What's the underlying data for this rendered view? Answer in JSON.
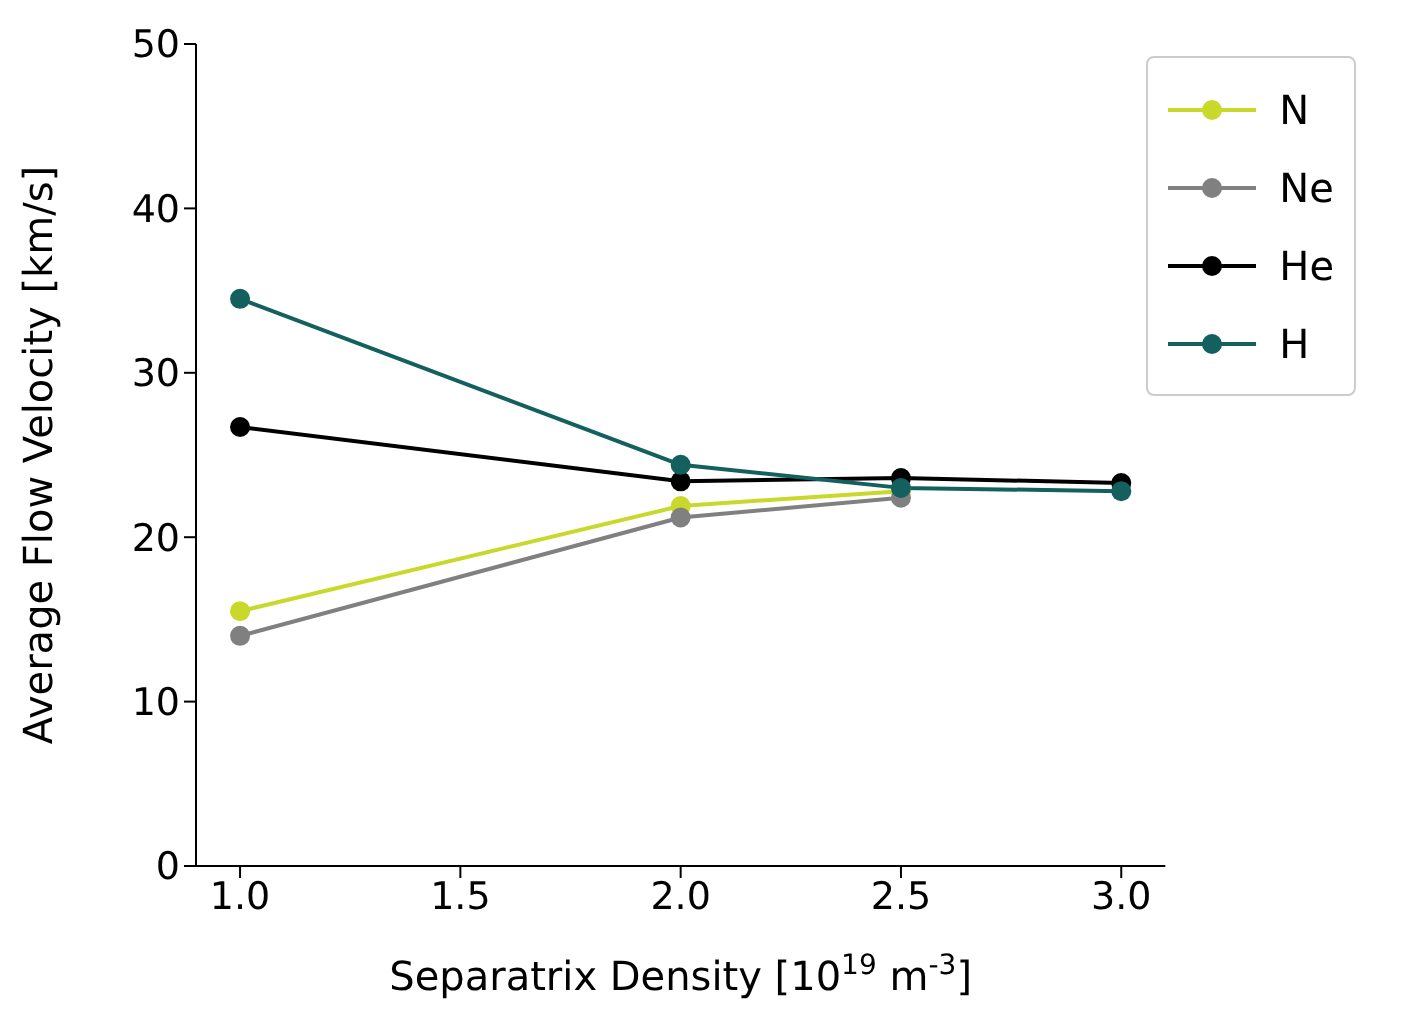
{
  "chart_data": {
    "type": "line",
    "xlabel": "Separatrix Density [10$^{19}$ m$^{-3}$]",
    "ylabel": "Average Flow Velocity [km/s]",
    "x": [
      1.0,
      2.0,
      2.5,
      3.0
    ],
    "series": [
      {
        "name": "N",
        "color": "#c8d92b",
        "values": [
          15.5,
          21.9,
          22.8,
          null
        ]
      },
      {
        "name": "Ne",
        "color": "#808080",
        "values": [
          14.0,
          21.2,
          22.4,
          null
        ]
      },
      {
        "name": "He",
        "color": "#000000",
        "values": [
          26.7,
          23.4,
          23.6,
          23.3
        ]
      },
      {
        "name": "H",
        "color": "#13605f",
        "values": [
          34.5,
          24.4,
          23.0,
          22.8
        ]
      }
    ],
    "xlim": [
      0.9,
      3.1
    ],
    "xticks": [
      {
        "value": 1.0,
        "label": "1.0"
      },
      {
        "value": 1.5,
        "label": "1.5"
      },
      {
        "value": 2.0,
        "label": "2.0"
      },
      {
        "value": 2.5,
        "label": "2.5"
      },
      {
        "value": 3.0,
        "label": "3.0"
      }
    ],
    "ylim": [
      0,
      50
    ],
    "yticks": [
      0,
      10,
      20,
      30,
      40,
      50
    ],
    "grid": false,
    "legend": "top right",
    "marker": "circle",
    "line_style": "solid"
  }
}
